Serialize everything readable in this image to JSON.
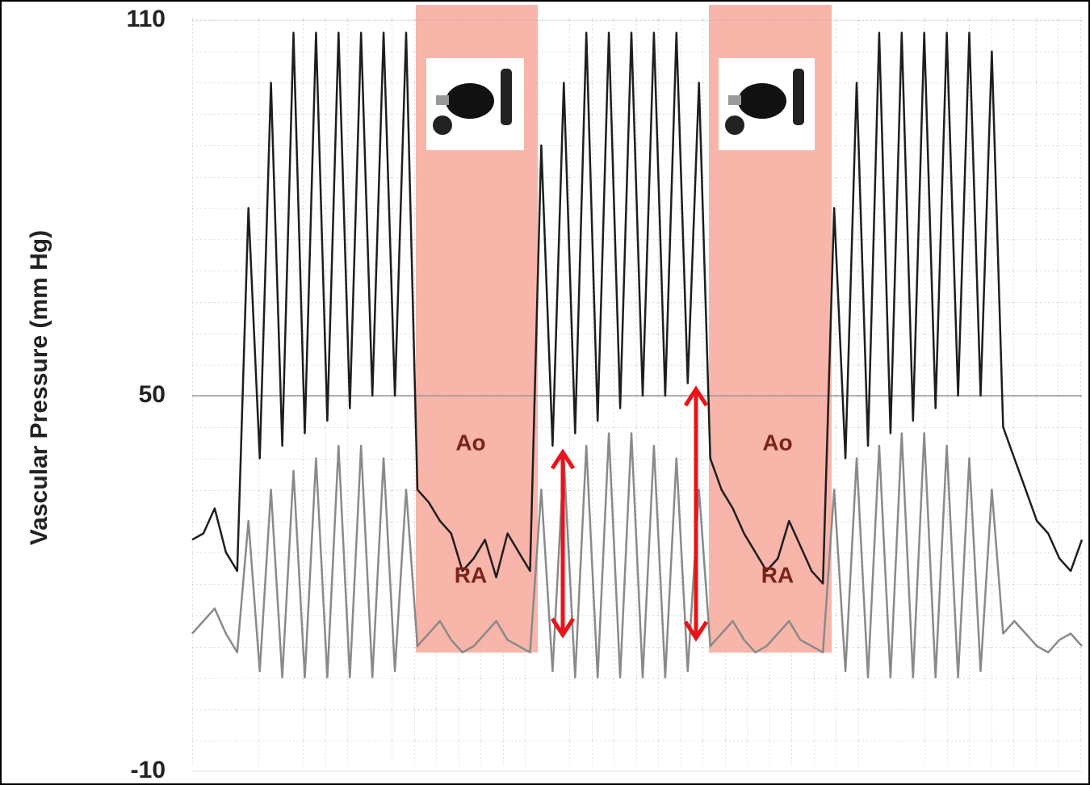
{
  "chart_data": {
    "type": "line",
    "y_label": "Vascular Pressure (mm Hg)",
    "ylim": [
      -10,
      110
    ],
    "yticks": [
      110,
      50,
      -10
    ],
    "grid": true,
    "series": [
      {
        "name": "Ao",
        "color": "#1e1e1e",
        "values": [
          27,
          28,
          32,
          25,
          22,
          80,
          40,
          100,
          42,
          108,
          44,
          108,
          46,
          108,
          48,
          108,
          50,
          108,
          50,
          108,
          35,
          33,
          30,
          28,
          22,
          24,
          27,
          21,
          28,
          25,
          22,
          90,
          42,
          100,
          44,
          108,
          46,
          108,
          48,
          108,
          50,
          108,
          50,
          108,
          52,
          100,
          40,
          35,
          32,
          28,
          25,
          22,
          24,
          30,
          26,
          22,
          20,
          80,
          40,
          100,
          42,
          108,
          44,
          108,
          46,
          108,
          48,
          108,
          50,
          108,
          50,
          105,
          45,
          40,
          35,
          30,
          28,
          24,
          22,
          27
        ]
      },
      {
        "name": "RA",
        "color": "#8a8a8a",
        "values": [
          12,
          14,
          16,
          12,
          9,
          30,
          6,
          35,
          5,
          38,
          5,
          40,
          5,
          42,
          5,
          42,
          5,
          40,
          6,
          35,
          10,
          12,
          14,
          11,
          9,
          10,
          12,
          14,
          11,
          10,
          9,
          35,
          6,
          40,
          5,
          42,
          5,
          44,
          5,
          44,
          5,
          42,
          5,
          40,
          6,
          35,
          10,
          12,
          14,
          11,
          9,
          10,
          12,
          14,
          11,
          10,
          9,
          35,
          6,
          40,
          5,
          42,
          5,
          44,
          5,
          44,
          5,
          42,
          5,
          40,
          6,
          35,
          12,
          14,
          12,
          10,
          9,
          11,
          12,
          10
        ]
      }
    ]
  }
}
